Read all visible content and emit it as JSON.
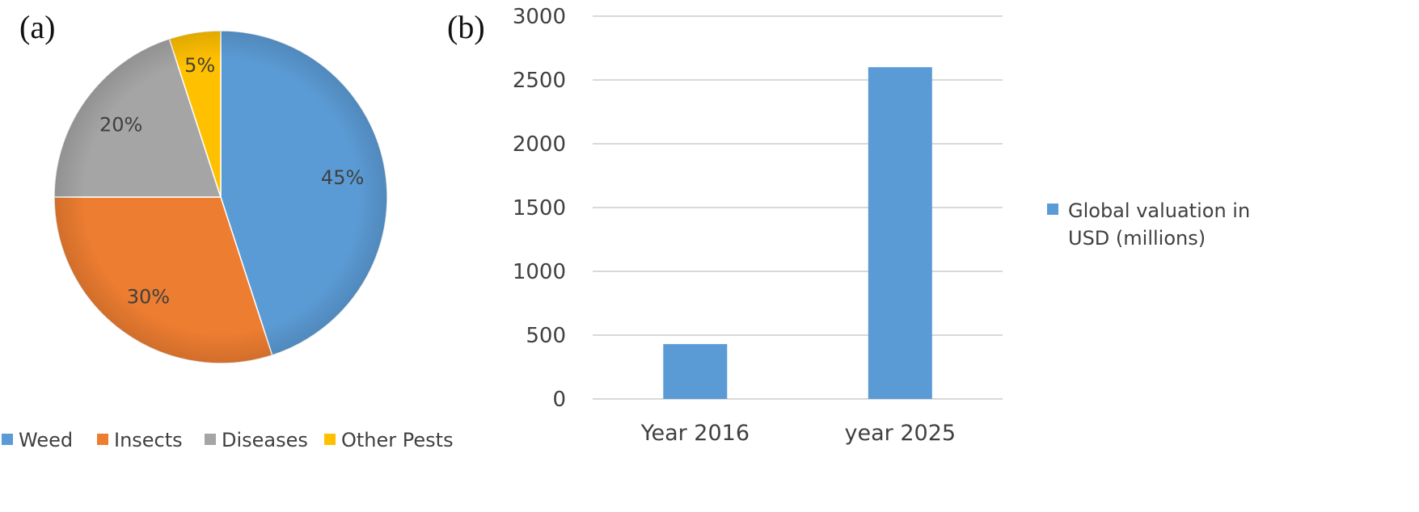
{
  "panels": {
    "a": "(a)",
    "b": "(b)"
  },
  "chart_data": [
    {
      "type": "pie",
      "categories": [
        "Weed",
        "Insects",
        "Diseases",
        "Other Pests"
      ],
      "values": [
        45,
        30,
        20,
        5
      ],
      "labels": [
        "45%",
        "30%",
        "20%",
        "5%"
      ],
      "colors": [
        "#5B9BD5",
        "#ED7D31",
        "#A5A5A5",
        "#FFC000"
      ],
      "legend_position": "bottom"
    },
    {
      "type": "bar",
      "categories": [
        "Year 2016",
        "year 2025"
      ],
      "series": [
        {
          "name": "Global valuation in USD (millions)",
          "values": [
            430,
            2600
          ],
          "color": "#5B9BD5"
        }
      ],
      "ylim": [
        0,
        3000
      ],
      "yticks": [
        "0",
        "500",
        "1000",
        "1500",
        "2000",
        "2500",
        "3000"
      ],
      "grid": true,
      "legend_position": "right",
      "legend_lines": [
        "Global valuation in",
        "USD (millions)"
      ]
    }
  ]
}
